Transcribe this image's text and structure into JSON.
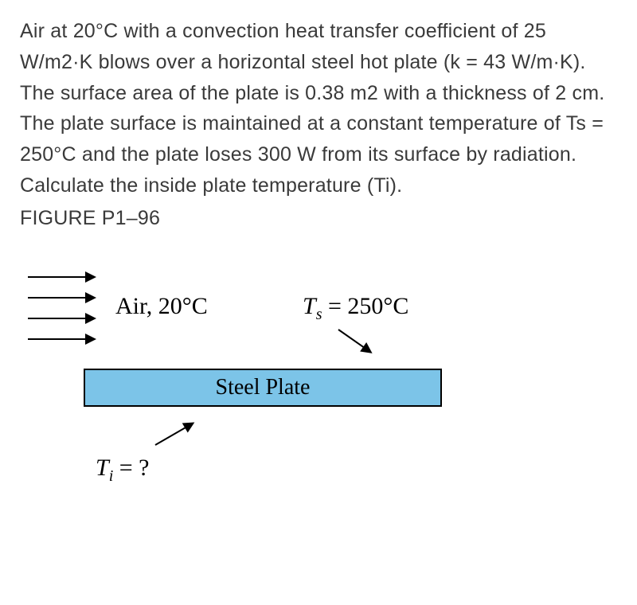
{
  "problem": {
    "text": "Air at 20°C with a convection heat transfer coefficient of 25 W/m2·K blows over a horizontal steel hot plate (k = 43 W/m·K). The surface area of the plate is 0.38 m2 with a thickness of 2 cm. The plate surface is maintained at a constant temperature of Ts = 250°C and the plate loses 300 W from its surface by radiation. Calculate the inside plate temperature (Ti).",
    "figure_label": "FIGURE P1–96"
  },
  "figure": {
    "air_label": "Air, 20°C",
    "ts_prefix": "T",
    "ts_sub": "s",
    "ts_rest": " = 250°C",
    "plate_label": "Steel Plate",
    "ti_prefix": "T",
    "ti_sub": "i",
    "ti_rest": " = ?",
    "plate_fill": "#7cc4e8",
    "plate_border": "#000000",
    "arrow_color": "#000000",
    "num_arrows": 4
  },
  "colors": {
    "text": "#3a3a3a",
    "background": "#ffffff"
  }
}
